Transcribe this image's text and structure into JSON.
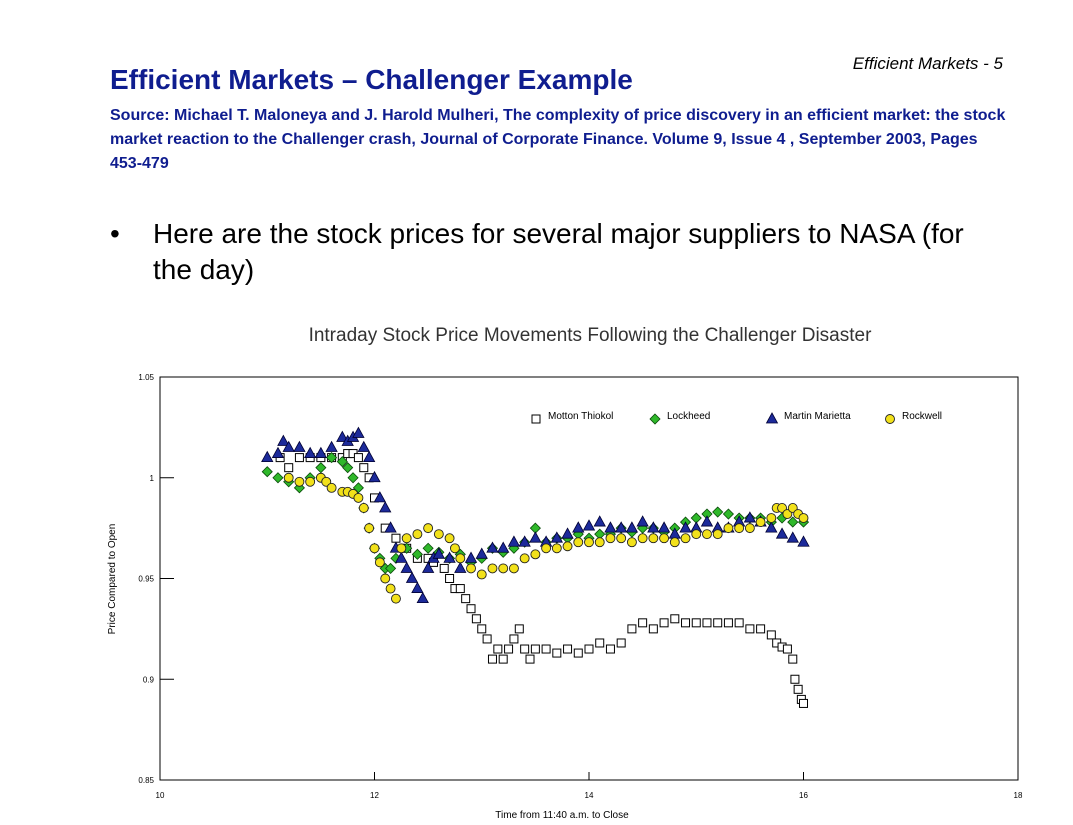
{
  "slide": {
    "label": "Efficient Markets - 5",
    "title": "Efficient Markets – Challenger Example",
    "source": "Source: Michael T. Maloneya and J. Harold Mulheri, The complexity of price discovery in an efficient market: the stock market reaction to the Challenger crash, Journal of Corporate Finance. Volume 9, Issue 4 , September 2003, Pages 453-479",
    "bullet": "Here are the stock prices for several major suppliers to NASA (for the day)"
  },
  "chart_data": {
    "type": "scatter",
    "title": "Intraday Stock Price Movements Following the Challenger Disaster",
    "xlabel": "Time from 11:40 a.m. to Close",
    "ylabel": "Price Compared to Open",
    "xlim": [
      10,
      18
    ],
    "ylim": [
      0.85,
      1.05
    ],
    "xticks": [
      10,
      12,
      14,
      16,
      18
    ],
    "yticks": [
      0.85,
      0.9,
      0.95,
      1,
      1.05
    ],
    "ytick_labels": [
      "0.85",
      "0.9",
      "0.95",
      "1",
      "1.05"
    ],
    "legend_position": "top-right inside",
    "grid": false,
    "series": [
      {
        "name": "Motton Thiokol",
        "marker": "square",
        "color": "#ffffff",
        "stroke": "#000000",
        "points": [
          [
            11.12,
            1.01
          ],
          [
            11.2,
            1.005
          ],
          [
            11.3,
            1.01
          ],
          [
            11.4,
            1.01
          ],
          [
            11.5,
            1.01
          ],
          [
            11.6,
            1.01
          ],
          [
            11.7,
            1.01
          ],
          [
            11.75,
            1.012
          ],
          [
            11.8,
            1.012
          ],
          [
            11.85,
            1.01
          ],
          [
            11.9,
            1.005
          ],
          [
            11.95,
            1.0
          ],
          [
            12.0,
            0.99
          ],
          [
            12.1,
            0.975
          ],
          [
            12.2,
            0.97
          ],
          [
            12.3,
            0.965
          ],
          [
            12.4,
            0.96
          ],
          [
            12.5,
            0.96
          ],
          [
            12.55,
            0.958
          ],
          [
            12.65,
            0.955
          ],
          [
            12.7,
            0.95
          ],
          [
            12.75,
            0.945
          ],
          [
            12.8,
            0.945
          ],
          [
            12.85,
            0.94
          ],
          [
            12.9,
            0.935
          ],
          [
            12.95,
            0.93
          ],
          [
            13.0,
            0.925
          ],
          [
            13.05,
            0.92
          ],
          [
            13.1,
            0.91
          ],
          [
            13.15,
            0.915
          ],
          [
            13.2,
            0.91
          ],
          [
            13.25,
            0.915
          ],
          [
            13.3,
            0.92
          ],
          [
            13.35,
            0.925
          ],
          [
            13.4,
            0.915
          ],
          [
            13.45,
            0.91
          ],
          [
            13.5,
            0.915
          ],
          [
            13.6,
            0.915
          ],
          [
            13.7,
            0.913
          ],
          [
            13.8,
            0.915
          ],
          [
            13.9,
            0.913
          ],
          [
            14.0,
            0.915
          ],
          [
            14.1,
            0.918
          ],
          [
            14.2,
            0.915
          ],
          [
            14.3,
            0.918
          ],
          [
            14.4,
            0.925
          ],
          [
            14.5,
            0.928
          ],
          [
            14.6,
            0.925
          ],
          [
            14.7,
            0.928
          ],
          [
            14.8,
            0.93
          ],
          [
            14.9,
            0.928
          ],
          [
            15.0,
            0.928
          ],
          [
            15.1,
            0.928
          ],
          [
            15.2,
            0.928
          ],
          [
            15.3,
            0.928
          ],
          [
            15.4,
            0.928
          ],
          [
            15.5,
            0.925
          ],
          [
            15.6,
            0.925
          ],
          [
            15.7,
            0.922
          ],
          [
            15.75,
            0.918
          ],
          [
            15.8,
            0.916
          ],
          [
            15.85,
            0.915
          ],
          [
            15.9,
            0.91
          ],
          [
            15.92,
            0.9
          ],
          [
            15.95,
            0.895
          ],
          [
            15.98,
            0.89
          ],
          [
            16.0,
            0.888
          ]
        ]
      },
      {
        "name": "Lockheed",
        "marker": "diamond",
        "color": "#2fb82a",
        "stroke": "#0a4a0a",
        "points": [
          [
            11.0,
            1.003
          ],
          [
            11.1,
            1.0
          ],
          [
            11.2,
            0.998
          ],
          [
            11.3,
            0.995
          ],
          [
            11.4,
            1.0
          ],
          [
            11.5,
            1.005
          ],
          [
            11.6,
            1.01
          ],
          [
            11.7,
            1.008
          ],
          [
            11.75,
            1.005
          ],
          [
            11.8,
            1.0
          ],
          [
            11.85,
            0.995
          ],
          [
            11.9,
            0.985
          ],
          [
            11.95,
            0.975
          ],
          [
            12.0,
            0.965
          ],
          [
            12.05,
            0.96
          ],
          [
            12.1,
            0.955
          ],
          [
            12.15,
            0.955
          ],
          [
            12.2,
            0.96
          ],
          [
            12.3,
            0.965
          ],
          [
            12.4,
            0.962
          ],
          [
            12.5,
            0.965
          ],
          [
            12.6,
            0.963
          ],
          [
            12.7,
            0.96
          ],
          [
            12.8,
            0.962
          ],
          [
            12.9,
            0.958
          ],
          [
            13.0,
            0.96
          ],
          [
            13.1,
            0.965
          ],
          [
            13.2,
            0.963
          ],
          [
            13.3,
            0.965
          ],
          [
            13.4,
            0.968
          ],
          [
            13.5,
            0.975
          ],
          [
            13.6,
            0.968
          ],
          [
            13.7,
            0.97
          ],
          [
            13.8,
            0.97
          ],
          [
            13.9,
            0.972
          ],
          [
            14.0,
            0.97
          ],
          [
            14.1,
            0.972
          ],
          [
            14.2,
            0.972
          ],
          [
            14.3,
            0.975
          ],
          [
            14.4,
            0.973
          ],
          [
            14.5,
            0.975
          ],
          [
            14.6,
            0.975
          ],
          [
            14.7,
            0.973
          ],
          [
            14.8,
            0.975
          ],
          [
            14.9,
            0.978
          ],
          [
            15.0,
            0.98
          ],
          [
            15.1,
            0.982
          ],
          [
            15.2,
            0.983
          ],
          [
            15.3,
            0.982
          ],
          [
            15.4,
            0.98
          ],
          [
            15.5,
            0.98
          ],
          [
            15.6,
            0.98
          ],
          [
            15.7,
            0.978
          ],
          [
            15.8,
            0.98
          ],
          [
            15.9,
            0.978
          ],
          [
            16.0,
            0.978
          ]
        ]
      },
      {
        "name": "Martin Marietta",
        "marker": "triangle",
        "color": "#1c2a9a",
        "stroke": "#000033",
        "points": [
          [
            11.0,
            1.01
          ],
          [
            11.1,
            1.012
          ],
          [
            11.15,
            1.018
          ],
          [
            11.2,
            1.015
          ],
          [
            11.3,
            1.015
          ],
          [
            11.4,
            1.012
          ],
          [
            11.5,
            1.012
          ],
          [
            11.6,
            1.015
          ],
          [
            11.7,
            1.02
          ],
          [
            11.75,
            1.018
          ],
          [
            11.8,
            1.02
          ],
          [
            11.85,
            1.022
          ],
          [
            11.9,
            1.015
          ],
          [
            11.95,
            1.01
          ],
          [
            12.0,
            1.0
          ],
          [
            12.05,
            0.99
          ],
          [
            12.1,
            0.985
          ],
          [
            12.15,
            0.975
          ],
          [
            12.2,
            0.965
          ],
          [
            12.25,
            0.96
          ],
          [
            12.3,
            0.955
          ],
          [
            12.35,
            0.95
          ],
          [
            12.4,
            0.945
          ],
          [
            12.45,
            0.94
          ],
          [
            12.5,
            0.955
          ],
          [
            12.55,
            0.96
          ],
          [
            12.6,
            0.962
          ],
          [
            12.7,
            0.96
          ],
          [
            12.8,
            0.955
          ],
          [
            12.9,
            0.96
          ],
          [
            13.0,
            0.962
          ],
          [
            13.1,
            0.965
          ],
          [
            13.2,
            0.965
          ],
          [
            13.3,
            0.968
          ],
          [
            13.4,
            0.968
          ],
          [
            13.5,
            0.97
          ],
          [
            13.6,
            0.968
          ],
          [
            13.7,
            0.97
          ],
          [
            13.8,
            0.972
          ],
          [
            13.9,
            0.975
          ],
          [
            14.0,
            0.976
          ],
          [
            14.1,
            0.978
          ],
          [
            14.2,
            0.975
          ],
          [
            14.3,
            0.975
          ],
          [
            14.4,
            0.975
          ],
          [
            14.5,
            0.978
          ],
          [
            14.6,
            0.975
          ],
          [
            14.7,
            0.975
          ],
          [
            14.8,
            0.972
          ],
          [
            14.9,
            0.975
          ],
          [
            15.0,
            0.975
          ],
          [
            15.1,
            0.978
          ],
          [
            15.2,
            0.975
          ],
          [
            15.3,
            0.975
          ],
          [
            15.4,
            0.978
          ],
          [
            15.5,
            0.98
          ],
          [
            15.6,
            0.978
          ],
          [
            15.7,
            0.975
          ],
          [
            15.8,
            0.972
          ],
          [
            15.9,
            0.97
          ],
          [
            16.0,
            0.968
          ]
        ]
      },
      {
        "name": "Rockwell",
        "marker": "circle",
        "color": "#f2e11a",
        "stroke": "#222222",
        "points": [
          [
            11.2,
            1.0
          ],
          [
            11.3,
            0.998
          ],
          [
            11.4,
            0.998
          ],
          [
            11.5,
            1.0
          ],
          [
            11.55,
            0.998
          ],
          [
            11.6,
            0.995
          ],
          [
            11.7,
            0.993
          ],
          [
            11.75,
            0.993
          ],
          [
            11.8,
            0.992
          ],
          [
            11.85,
            0.99
          ],
          [
            11.9,
            0.985
          ],
          [
            11.95,
            0.975
          ],
          [
            12.0,
            0.965
          ],
          [
            12.05,
            0.958
          ],
          [
            12.1,
            0.95
          ],
          [
            12.15,
            0.945
          ],
          [
            12.2,
            0.94
          ],
          [
            12.25,
            0.965
          ],
          [
            12.3,
            0.97
          ],
          [
            12.4,
            0.972
          ],
          [
            12.5,
            0.975
          ],
          [
            12.6,
            0.972
          ],
          [
            12.7,
            0.97
          ],
          [
            12.75,
            0.965
          ],
          [
            12.8,
            0.96
          ],
          [
            12.9,
            0.955
          ],
          [
            13.0,
            0.952
          ],
          [
            13.1,
            0.955
          ],
          [
            13.2,
            0.955
          ],
          [
            13.3,
            0.955
          ],
          [
            13.4,
            0.96
          ],
          [
            13.5,
            0.962
          ],
          [
            13.6,
            0.965
          ],
          [
            13.7,
            0.965
          ],
          [
            13.8,
            0.966
          ],
          [
            13.9,
            0.968
          ],
          [
            14.0,
            0.968
          ],
          [
            14.1,
            0.968
          ],
          [
            14.2,
            0.97
          ],
          [
            14.3,
            0.97
          ],
          [
            14.4,
            0.968
          ],
          [
            14.5,
            0.97
          ],
          [
            14.6,
            0.97
          ],
          [
            14.7,
            0.97
          ],
          [
            14.8,
            0.968
          ],
          [
            14.9,
            0.97
          ],
          [
            15.0,
            0.972
          ],
          [
            15.1,
            0.972
          ],
          [
            15.2,
            0.972
          ],
          [
            15.3,
            0.975
          ],
          [
            15.4,
            0.975
          ],
          [
            15.5,
            0.975
          ],
          [
            15.6,
            0.978
          ],
          [
            15.7,
            0.98
          ],
          [
            15.75,
            0.985
          ],
          [
            15.8,
            0.985
          ],
          [
            15.85,
            0.982
          ],
          [
            15.9,
            0.985
          ],
          [
            15.95,
            0.982
          ],
          [
            16.0,
            0.98
          ]
        ]
      }
    ]
  }
}
